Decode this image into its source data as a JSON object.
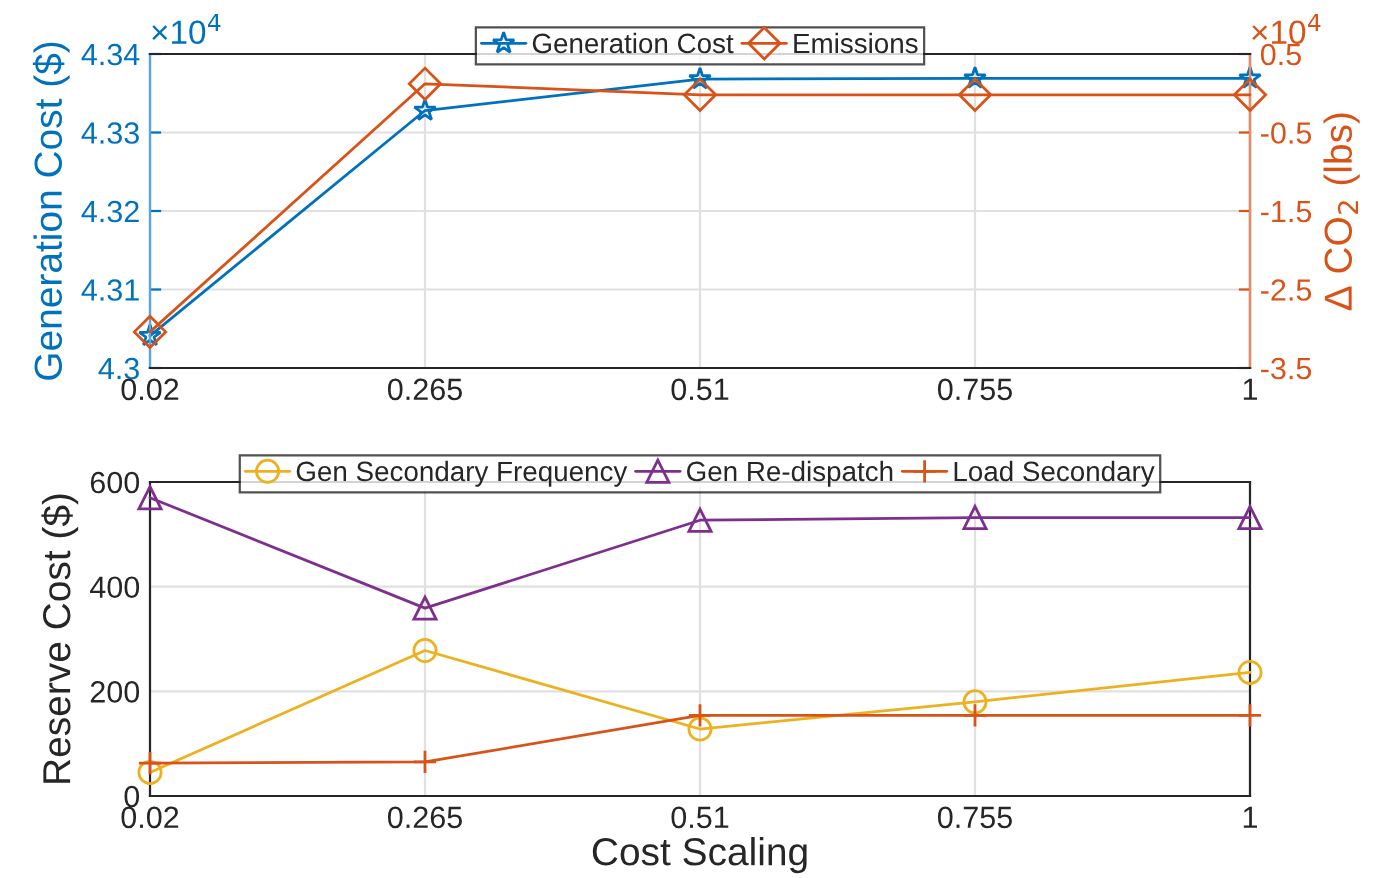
{
  "chart_data": [
    {
      "type": "line",
      "x": [
        0.02,
        0.265,
        0.51,
        0.755,
        1
      ],
      "xlim": [
        0.02,
        1
      ],
      "xticks": [
        0.02,
        0.265,
        0.51,
        0.755,
        1
      ],
      "ylabel": "Generation Cost ($)",
      "y2label": "Δ CO$_{2}$ (lbs)",
      "ylim": [
        4.3,
        4.34
      ],
      "yticks": [
        4.3,
        4.31,
        4.32,
        4.33,
        4.34
      ],
      "y2lim": [
        -3.5,
        0.5
      ],
      "y2ticks": [
        -3.5,
        -2.5,
        -1.5,
        -0.5,
        0.5
      ],
      "annotations": [
        "×10$^{4}$",
        "×10$^{4}$"
      ],
      "grid": true,
      "legend": "top",
      "series": [
        {
          "name": "Generation Cost",
          "color": "#0072bd",
          "marker": "star",
          "values": [
            4.3041,
            4.3328,
            4.3368,
            4.3369,
            4.3369
          ]
        },
        {
          "name": "Emissions",
          "color": "#d95319",
          "marker": "diamond",
          "axis": "y2",
          "values": [
            -3.04,
            0.12,
            -0.02,
            -0.02,
            -0.02
          ]
        }
      ]
    },
    {
      "type": "line",
      "x": [
        0.02,
        0.265,
        0.51,
        0.755,
        1
      ],
      "xlim": [
        0.02,
        1
      ],
      "xticks": [
        0.02,
        0.265,
        0.51,
        0.755,
        1
      ],
      "xlabel": "Cost Scaling",
      "ylabel": "Reserve Cost ($)",
      "ylim": [
        0,
        600
      ],
      "yticks": [
        0,
        200,
        400,
        600
      ],
      "grid": true,
      "legend": "top",
      "series": [
        {
          "name": "Gen Secondary Frequency",
          "color": "#edb120",
          "marker": "circle",
          "values": [
            45,
            278,
            128,
            180,
            236
          ]
        },
        {
          "name": "Gen Re-dispatch",
          "color": "#7e2f8e",
          "marker": "triangle",
          "values": [
            570,
            359,
            527,
            532,
            532
          ]
        },
        {
          "name": "Load Secondary",
          "color": "#d95319",
          "marker": "cross",
          "values": [
            63,
            65,
            154,
            154,
            154
          ]
        }
      ]
    }
  ]
}
